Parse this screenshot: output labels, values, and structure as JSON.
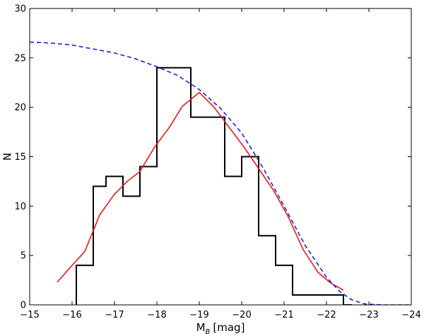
{
  "chart_data": {
    "type": "line",
    "title": "",
    "xlabel": "M",
    "xlabel_sub": "B",
    "xlabel_unit": "[mag]",
    "ylabel": "N",
    "xlim": [
      -15,
      -24
    ],
    "ylim": [
      0,
      30
    ],
    "x_inverted": true,
    "grid": false,
    "legend": "none",
    "x_ticks": [
      -15,
      -16,
      -17,
      -18,
      -19,
      -20,
      -21,
      -22,
      -23,
      -24
    ],
    "x_tick_labels": [
      "−15",
      "−16",
      "−17",
      "−18",
      "−19",
      "−20",
      "−21",
      "−22",
      "−23",
      "−24"
    ],
    "y_ticks": [
      0,
      5,
      10,
      15,
      20,
      25,
      30
    ],
    "y_tick_labels": [
      "0",
      "5",
      "10",
      "15",
      "20",
      "25",
      "30"
    ],
    "series": [
      {
        "kind": "step-histogram",
        "color": "#000000",
        "bin_edges": [
          -16.1,
          -16.5,
          -16.8,
          -17.2,
          -17.6,
          -18.0,
          -18.4,
          -18.8,
          -19.2,
          -19.6,
          -20.0,
          -20.4,
          -20.8,
          -21.2,
          -21.6,
          -22.0,
          -22.4,
          -22.6
        ],
        "counts": [
          4,
          12,
          13,
          11,
          14,
          24,
          24,
          19,
          19,
          13,
          15,
          7,
          4,
          1,
          1,
          1,
          0
        ]
      },
      {
        "kind": "line",
        "color": "#e41a1c",
        "x": [
          -15.65,
          -16.0,
          -16.3,
          -16.65,
          -17.0,
          -17.3,
          -17.6,
          -17.95,
          -18.3,
          -18.6,
          -19.0,
          -19.35,
          -19.7,
          -20.05,
          -20.4,
          -20.75,
          -21.1,
          -21.45,
          -21.8,
          -22.1,
          -22.4
        ],
        "y": [
          2.3,
          4.0,
          5.4,
          9.1,
          11.2,
          12.5,
          13.5,
          16.0,
          18.0,
          20.1,
          21.5,
          20.0,
          18.0,
          16.0,
          13.8,
          11.6,
          8.9,
          5.6,
          3.3,
          2.2,
          1.5
        ]
      },
      {
        "kind": "dashed-curve",
        "color": "#1f1fd0",
        "x": [
          -15.0,
          -15.5,
          -16.0,
          -16.5,
          -17.0,
          -17.5,
          -18.0,
          -18.5,
          -19.0,
          -19.5,
          -20.0,
          -20.5,
          -21.0,
          -21.5,
          -22.0,
          -22.3,
          -22.6,
          -22.9,
          -23.3,
          -24.0
        ],
        "y": [
          26.6,
          26.5,
          26.3,
          25.9,
          25.5,
          24.9,
          24.1,
          23.2,
          21.8,
          19.9,
          17.4,
          13.9,
          10.0,
          6.0,
          2.8,
          1.4,
          0.5,
          0.1,
          0.0,
          0.0
        ]
      }
    ]
  }
}
